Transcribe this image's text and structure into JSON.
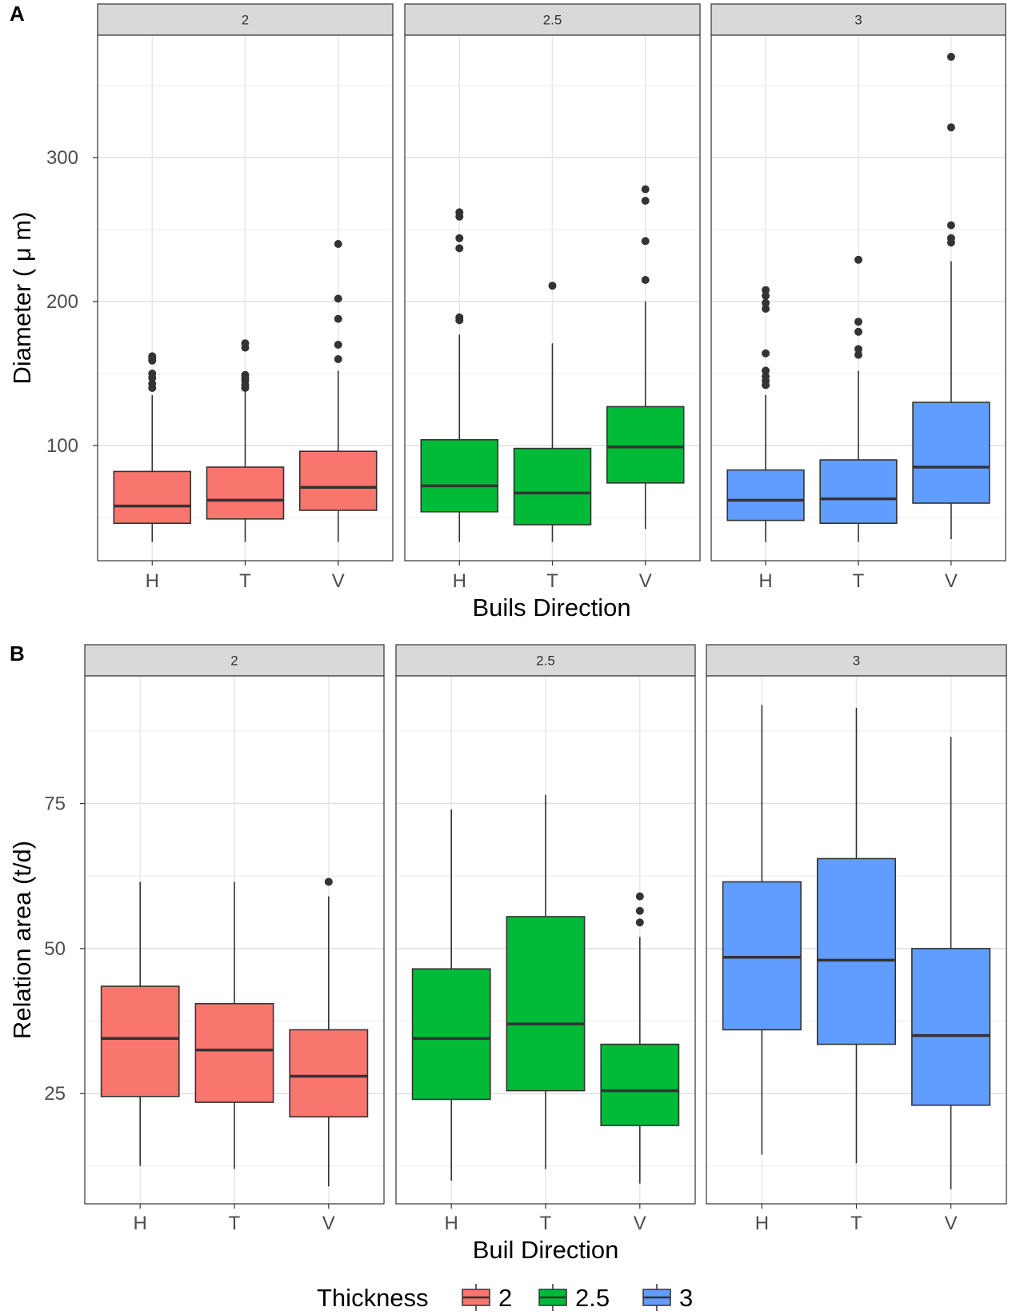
{
  "chart_data": [
    {
      "panel_label": "A",
      "type": "boxplot",
      "facet_variable": "Thickness",
      "categories": [
        "H",
        "T",
        "V"
      ],
      "xlabel": "Buils Direction",
      "ylabel": "Diameter ( μ m)",
      "ylim": [
        20,
        385
      ],
      "yticks": [
        100,
        200,
        300
      ],
      "ytick_labels": [
        "100",
        "200",
        "300"
      ],
      "grid": true,
      "facets": [
        {
          "label": "2",
          "color": "#F8766D",
          "boxes": [
            {
              "category": "H",
              "whisker_low": 33,
              "q1": 46,
              "median": 58,
              "q3": 82,
              "whisker_high": 135,
              "outliers": [
                140,
                143,
                147,
                150,
                159,
                161,
                162
              ]
            },
            {
              "category": "T",
              "whisker_low": 33,
              "q1": 49,
              "median": 62,
              "q3": 85,
              "whisker_high": 138,
              "outliers": [
                140,
                142,
                145,
                147,
                149,
                168,
                171
              ]
            },
            {
              "category": "V",
              "whisker_low": 33,
              "q1": 55,
              "median": 71,
              "q3": 96,
              "whisker_high": 152,
              "outliers": [
                160,
                170,
                188,
                202,
                240
              ]
            }
          ]
        },
        {
          "label": "2.5",
          "color": "#00BA38",
          "boxes": [
            {
              "category": "H",
              "whisker_low": 33,
              "q1": 54,
              "median": 72,
              "q3": 104,
              "whisker_high": 177,
              "outliers": [
                187,
                189,
                237,
                244,
                259,
                262
              ]
            },
            {
              "category": "T",
              "whisker_low": 33,
              "q1": 45,
              "median": 67,
              "q3": 98,
              "whisker_high": 171,
              "outliers": [
                211
              ]
            },
            {
              "category": "V",
              "whisker_low": 42,
              "q1": 74,
              "median": 99,
              "q3": 127,
              "whisker_high": 200,
              "outliers": [
                215,
                242,
                270,
                278
              ]
            }
          ]
        },
        {
          "label": "3",
          "color": "#619CFF",
          "boxes": [
            {
              "category": "H",
              "whisker_low": 33,
              "q1": 48,
              "median": 62,
              "q3": 83,
              "whisker_high": 135,
              "outliers": [
                142,
                145,
                148,
                152,
                164,
                195,
                199,
                204,
                208
              ]
            },
            {
              "category": "T",
              "whisker_low": 33,
              "q1": 46,
              "median": 63,
              "q3": 90,
              "whisker_high": 152,
              "outliers": [
                163,
                167,
                179,
                186,
                229
              ]
            },
            {
              "category": "V",
              "whisker_low": 35,
              "q1": 60,
              "median": 85,
              "q3": 130,
              "whisker_high": 228,
              "outliers": [
                241,
                244,
                253,
                321,
                370
              ]
            }
          ]
        }
      ]
    },
    {
      "panel_label": "B",
      "type": "boxplot",
      "facet_variable": "Thickness",
      "categories": [
        "H",
        "T",
        "V"
      ],
      "xlabel": "Buil Direction",
      "ylabel": "Relation area (t/d)",
      "ylim": [
        6,
        97
      ],
      "yticks": [
        25,
        50,
        75
      ],
      "ytick_labels": [
        "25",
        "50",
        "75"
      ],
      "grid": true,
      "facets": [
        {
          "label": "2",
          "color": "#F8766D",
          "boxes": [
            {
              "category": "H",
              "whisker_low": 12.5,
              "q1": 24.5,
              "median": 34.5,
              "q3": 43.5,
              "whisker_high": 61.5,
              "outliers": []
            },
            {
              "category": "T",
              "whisker_low": 12,
              "q1": 23.5,
              "median": 32.5,
              "q3": 40.5,
              "whisker_high": 61.5,
              "outliers": []
            },
            {
              "category": "V",
              "whisker_low": 9,
              "q1": 21,
              "median": 28,
              "q3": 36,
              "whisker_high": 59,
              "outliers": [
                61.5
              ]
            }
          ]
        },
        {
          "label": "2.5",
          "color": "#00BA38",
          "boxes": [
            {
              "category": "H",
              "whisker_low": 10,
              "q1": 24,
              "median": 34.5,
              "q3": 46.5,
              "whisker_high": 74,
              "outliers": []
            },
            {
              "category": "T",
              "whisker_low": 12,
              "q1": 25.5,
              "median": 37,
              "q3": 55.5,
              "whisker_high": 76.5,
              "outliers": []
            },
            {
              "category": "V",
              "whisker_low": 9.5,
              "q1": 19.5,
              "median": 25.5,
              "q3": 33.5,
              "whisker_high": 52,
              "outliers": [
                54.5,
                56.5,
                59
              ]
            }
          ]
        },
        {
          "label": "3",
          "color": "#619CFF",
          "boxes": [
            {
              "category": "H",
              "whisker_low": 14.5,
              "q1": 36,
              "median": 48.5,
              "q3": 61.5,
              "whisker_high": 92,
              "outliers": []
            },
            {
              "category": "T",
              "whisker_low": 13,
              "q1": 33.5,
              "median": 48,
              "q3": 65.5,
              "whisker_high": 91.5,
              "outliers": []
            },
            {
              "category": "V",
              "whisker_low": 8.5,
              "q1": 23,
              "median": 35,
              "q3": 50,
              "whisker_high": 86.5,
              "outliers": []
            }
          ]
        }
      ]
    }
  ],
  "legend": {
    "title": "Thickness",
    "position": "bottom",
    "items": [
      {
        "label": "2",
        "color": "#F8766D"
      },
      {
        "label": "2.5",
        "color": "#00BA38"
      },
      {
        "label": "3",
        "color": "#619CFF"
      }
    ]
  }
}
